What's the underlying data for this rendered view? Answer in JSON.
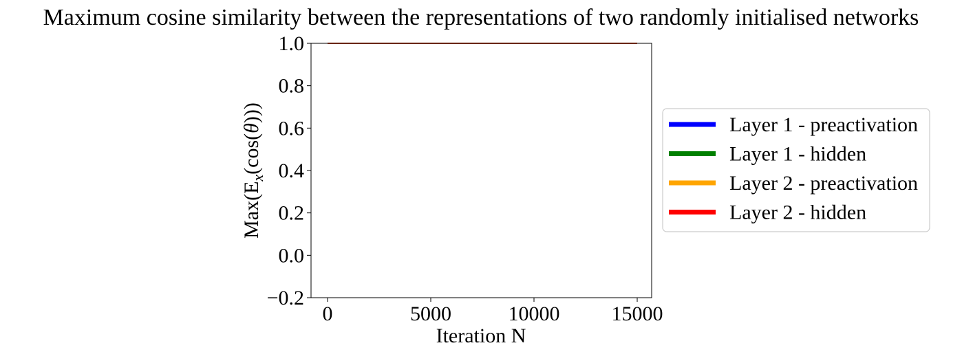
{
  "chart_data": {
    "type": "line",
    "title": "Maximum cosine similarity between the representations of  two randomly initialised networks",
    "xlabel": "Iteration N",
    "ylabel": {
      "prefix": "Max(",
      "blackboard": "E",
      "subscript": "x",
      "middle": "(cos(",
      "theta": "θ",
      "suffix": ")))"
    },
    "xlim": [
      -800,
      15700
    ],
    "ylim": [
      -0.2,
      1.0
    ],
    "xticks": [
      0,
      5000,
      10000,
      15000
    ],
    "xtick_labels": [
      "0",
      "5000",
      "10000",
      "15000"
    ],
    "yticks": [
      -0.2,
      0.0,
      0.2,
      0.4,
      0.6,
      0.8,
      1.0
    ],
    "ytick_labels": [
      "−0.2",
      "0.0",
      "0.2",
      "0.4",
      "0.6",
      "0.8",
      "1.0"
    ],
    "grid": false,
    "legend_position": "right, outside plot area",
    "series": [
      {
        "name": "Layer 1 - preactivation",
        "color": "#0000ff",
        "x": [
          0,
          15000
        ],
        "values": [
          1.0,
          1.0
        ]
      },
      {
        "name": "Layer 1 - hidden",
        "color": "#008000",
        "x": [
          0,
          15000
        ],
        "values": [
          1.0,
          1.0
        ]
      },
      {
        "name": "Layer 2 - preactivation",
        "color": "#ffa500",
        "x": [
          0,
          15000
        ],
        "values": [
          1.0,
          1.0
        ]
      },
      {
        "name": "Layer 2 - hidden",
        "color": "#ff0000",
        "x": [
          0,
          15000
        ],
        "values": [
          1.0,
          1.0
        ]
      }
    ]
  }
}
